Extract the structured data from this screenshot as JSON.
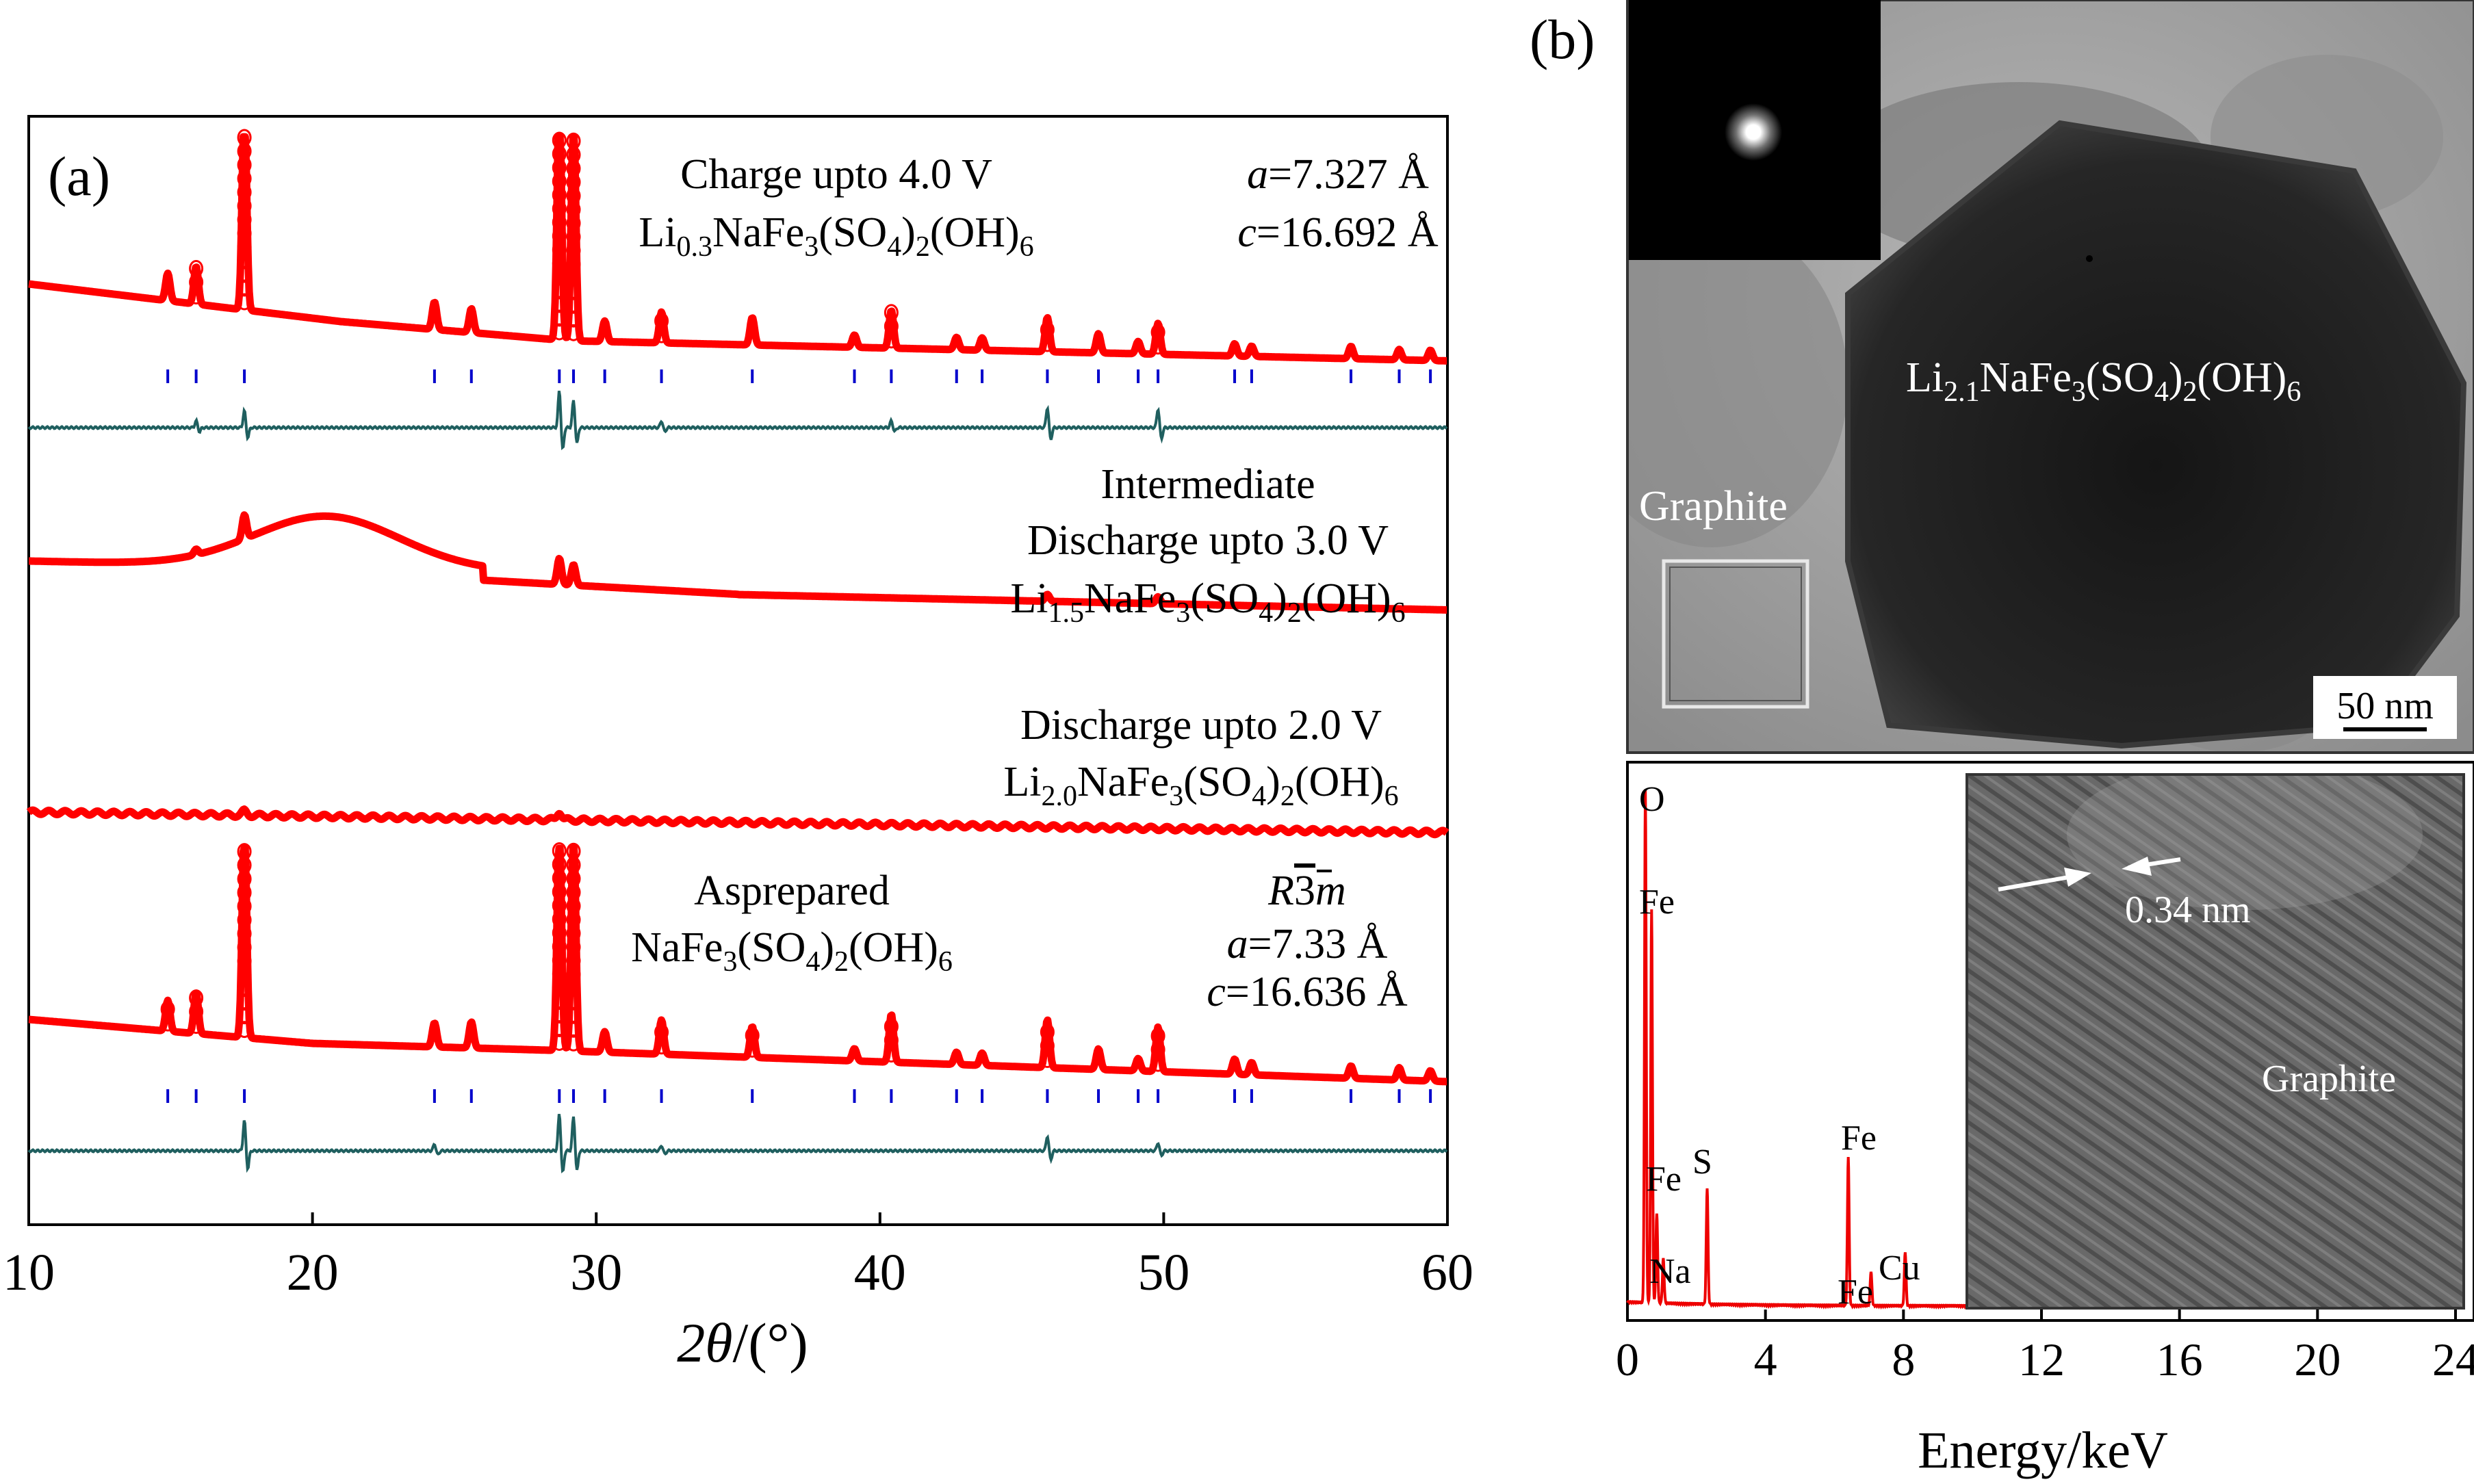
{
  "chart_data": [
    {
      "type": "line",
      "panel_label": "(a)",
      "xlabel_symbol": "2θ",
      "xlabel_unit": "/(°)",
      "xlim": [
        10,
        60
      ],
      "x_ticks": [
        "10",
        "20",
        "30",
        "40",
        "50",
        "60"
      ],
      "series": [
        {
          "name": "Charge upto 4.0 V",
          "formula": {
            "pre": "Li",
            "sub1": "0.3",
            "mid": "NaFe",
            "sub2": "3",
            "mid2": "(SO",
            "sub3": "4",
            "mid3": ")",
            "sub4": "2",
            "post": "(OH)",
            "sub5": "6"
          },
          "lattice_a": "a=7.327 Å",
          "lattice_a_sym": "a",
          "lattice_a_val": "=7.327 Å",
          "lattice_c_sym": "c",
          "lattice_c_val": "=16.692 Å",
          "peaks_2theta": [
            14.9,
            15.9,
            17.6,
            24.3,
            25.6,
            28.7,
            29.2,
            30.3,
            32.3,
            35.5,
            39.1,
            40.4,
            42.7,
            43.6,
            45.9,
            47.7,
            49.1,
            49.8,
            52.5,
            53.1,
            56.6,
            58.3,
            59.4
          ]
        },
        {
          "name_line1": "Intermediate",
          "name_line2": "Discharge upto 3.0 V",
          "formula": {
            "pre": "Li",
            "sub1": "1.5",
            "mid": "NaFe",
            "sub2": "3",
            "mid2": "(SO",
            "sub3": "4",
            "mid3": ")",
            "sub4": "2",
            "post": "(OH)",
            "sub5": "6"
          }
        },
        {
          "name": "Discharge upto 2.0 V",
          "formula": {
            "pre": "Li",
            "sub1": "2.0",
            "mid": "NaFe",
            "sub2": "3",
            "mid2": "(SO",
            "sub3": "4",
            "mid3": ")",
            "sub4": "2",
            "post": "(OH)",
            "sub5": "6"
          }
        },
        {
          "name": "Asprepared",
          "formula": {
            "pre": "NaFe",
            "sub2": "3",
            "mid2": "(SO",
            "sub3": "4",
            "mid3": ")",
            "sub4": "2",
            "post": "(OH)",
            "sub5": "6"
          },
          "space_group_R": "R",
          "space_group_3": "3",
          "space_group_m": "m",
          "lattice_a_sym": "a",
          "lattice_a_val": "=7.33 Å",
          "lattice_c_sym": "c",
          "lattice_c_val": "=16.636 Å",
          "peaks_2theta": [
            14.9,
            15.9,
            17.6,
            24.3,
            25.6,
            28.7,
            29.2,
            30.3,
            32.3,
            35.5,
            39.1,
            40.4,
            42.7,
            43.6,
            45.9,
            47.7,
            49.1,
            49.8,
            52.5,
            53.1,
            56.6,
            58.3,
            59.4
          ]
        }
      ],
      "colors": {
        "observed": "#ff0000",
        "difference": "#1f5f5f",
        "bragg": "#0000cc"
      }
    },
    {
      "type": "image",
      "panel_label": "(b)",
      "tem_formula": {
        "pre": "Li",
        "sub1": "2.1",
        "mid": "NaFe",
        "sub2": "3",
        "mid2": "(SO",
        "sub3": "4",
        "mid3": ")",
        "sub4": "2",
        "post": "(OH)",
        "sub5": "6"
      },
      "tem_label_graphite": "Graphite",
      "scale_bar": "50 nm",
      "hrtem_spacing": "0.34 nm",
      "hrtem_label": "Graphite"
    },
    {
      "type": "line",
      "xlabel": "Energy/keV",
      "xlim": [
        0,
        24
      ],
      "x_ticks": [
        "0",
        "4",
        "8",
        "12",
        "16",
        "20",
        "24"
      ],
      "peaks": [
        {
          "label": "O",
          "energy": 0.52
        },
        {
          "label": "Fe",
          "energy": 0.7
        },
        {
          "label": "Fe",
          "energy": 0.85
        },
        {
          "label": "Na",
          "energy": 1.04
        },
        {
          "label": "S",
          "energy": 2.31
        },
        {
          "label": "Fe",
          "energy": 6.4
        },
        {
          "label": "Fe",
          "energy": 7.06
        },
        {
          "label": "Cu",
          "energy": 8.05
        }
      ],
      "color": "#ee0000"
    }
  ]
}
